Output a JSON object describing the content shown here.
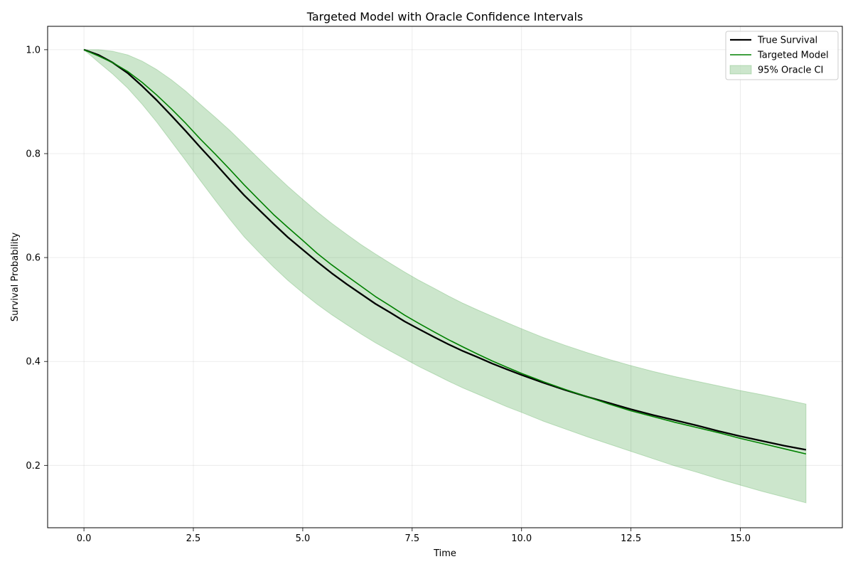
{
  "chart_data": {
    "type": "line",
    "title": "Targeted Model with Oracle Confidence Intervals",
    "xlabel": "Time",
    "ylabel": "Survival Probability",
    "xlim": [
      -0.83,
      17.33
    ],
    "ylim": [
      0.08,
      1.045
    ],
    "xticks": [
      "0.0",
      "2.5",
      "5.0",
      "7.5",
      "10.0",
      "12.5",
      "15.0"
    ],
    "xtick_values": [
      0,
      2.5,
      5,
      7.5,
      10,
      12.5,
      15
    ],
    "yticks": [
      "0.2",
      "0.4",
      "0.6",
      "0.8",
      "1.0"
    ],
    "ytick_values": [
      0.2,
      0.4,
      0.6,
      0.8,
      1.0
    ],
    "grid": true,
    "legend_position": "top-right",
    "x": [
      0,
      0.33,
      0.66,
      1.0,
      1.33,
      1.66,
      2.0,
      2.33,
      2.66,
      3.0,
      3.33,
      3.66,
      4.0,
      4.33,
      4.66,
      5.0,
      5.33,
      5.66,
      6.0,
      6.33,
      6.66,
      7.0,
      7.33,
      7.66,
      8.0,
      8.33,
      8.66,
      9.0,
      9.33,
      9.66,
      10.0,
      10.5,
      11.0,
      11.5,
      12.0,
      12.5,
      13.0,
      13.5,
      14.0,
      14.5,
      15.0,
      15.5,
      16.0,
      16.5
    ],
    "series": [
      {
        "name": "True Survival",
        "color": "#000000",
        "values": [
          1.0,
          0.99,
          0.975,
          0.955,
          0.93,
          0.903,
          0.873,
          0.843,
          0.812,
          0.781,
          0.75,
          0.72,
          0.692,
          0.665,
          0.639,
          0.615,
          0.592,
          0.57,
          0.549,
          0.53,
          0.511,
          0.494,
          0.477,
          0.462,
          0.447,
          0.433,
          0.42,
          0.408,
          0.396,
          0.385,
          0.374,
          0.359,
          0.345,
          0.332,
          0.32,
          0.308,
          0.297,
          0.287,
          0.277,
          0.266,
          0.256,
          0.247,
          0.238,
          0.23
        ]
      },
      {
        "name": "Targeted Model",
        "color": "#008000",
        "values": [
          1.0,
          0.988,
          0.975,
          0.958,
          0.937,
          0.913,
          0.886,
          0.858,
          0.828,
          0.799,
          0.77,
          0.74,
          0.711,
          0.683,
          0.658,
          0.633,
          0.608,
          0.586,
          0.565,
          0.545,
          0.525,
          0.507,
          0.489,
          0.473,
          0.457,
          0.442,
          0.428,
          0.414,
          0.401,
          0.389,
          0.377,
          0.361,
          0.346,
          0.332,
          0.318,
          0.305,
          0.294,
          0.283,
          0.273,
          0.263,
          0.252,
          0.242,
          0.232,
          0.222
        ]
      }
    ],
    "band": {
      "name": "95% Oracle CI",
      "color": "#008000",
      "opacity": 0.2,
      "lower": [
        1.0,
        0.976,
        0.953,
        0.926,
        0.895,
        0.861,
        0.823,
        0.786,
        0.748,
        0.71,
        0.674,
        0.64,
        0.61,
        0.582,
        0.556,
        0.532,
        0.51,
        0.49,
        0.471,
        0.453,
        0.436,
        0.42,
        0.405,
        0.39,
        0.376,
        0.362,
        0.349,
        0.337,
        0.325,
        0.313,
        0.302,
        0.285,
        0.27,
        0.255,
        0.241,
        0.227,
        0.213,
        0.199,
        0.187,
        0.174,
        0.162,
        0.15,
        0.139,
        0.128
      ],
      "upper": [
        1.0,
        1.0,
        0.997,
        0.99,
        0.978,
        0.962,
        0.942,
        0.92,
        0.895,
        0.87,
        0.845,
        0.818,
        0.79,
        0.763,
        0.737,
        0.712,
        0.688,
        0.666,
        0.645,
        0.625,
        0.607,
        0.589,
        0.572,
        0.556,
        0.541,
        0.526,
        0.512,
        0.499,
        0.487,
        0.475,
        0.463,
        0.446,
        0.431,
        0.417,
        0.404,
        0.392,
        0.381,
        0.371,
        0.362,
        0.353,
        0.344,
        0.336,
        0.327,
        0.318
      ]
    }
  }
}
